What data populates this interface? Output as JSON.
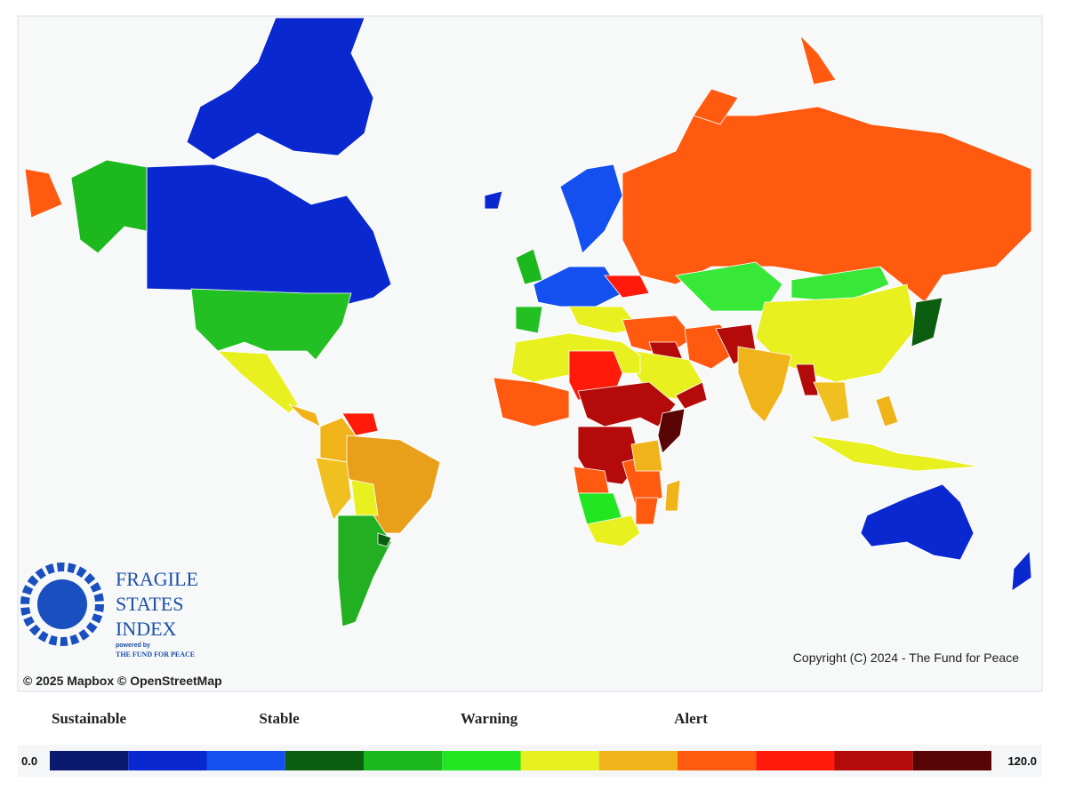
{
  "map": {
    "logo": {
      "line1": "FRAGILE",
      "line2": "STATES",
      "line3": "INDEX",
      "powered": "powered by",
      "org": "THE FUND FOR PEACE"
    },
    "copyright": "Copyright (C) 2024 - The Fund for Peace",
    "attribution": "© 2025 Mapbox © OpenStreetMap"
  },
  "legend": {
    "labels": [
      "Sustainable",
      "Stable",
      "Warning",
      "Alert"
    ],
    "min": {
      "value": 0,
      "label": "0.0"
    },
    "max": {
      "value": 120,
      "label": "120.0"
    },
    "colors": [
      "#0a1a6e",
      "#0a28d0",
      "#1450f0",
      "#0b5e0f",
      "#1db81d",
      "#22e622",
      "#e8f020",
      "#f0b41a",
      "#ff5a10",
      "#ff1a0a",
      "#b40a0a",
      "#5a0505"
    ]
  }
}
